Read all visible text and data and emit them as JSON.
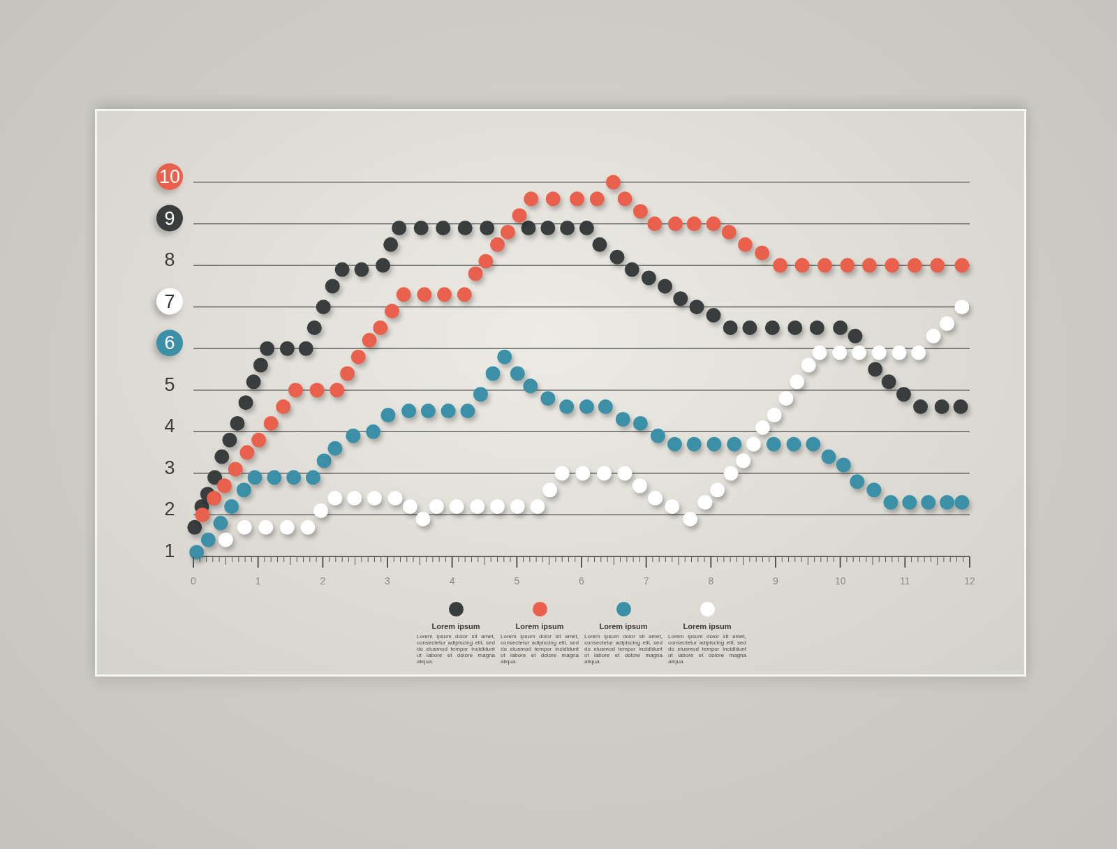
{
  "chart_data": {
    "type": "scatter",
    "marker": "circle",
    "grid": "y",
    "legend": "bottom",
    "xlim": [
      0,
      12
    ],
    "ylim": [
      1,
      10
    ],
    "yticks": [
      1,
      2,
      3,
      4,
      5,
      6,
      7,
      8,
      9,
      10
    ],
    "xticks": [
      0,
      {
        "value": 0.1,
        "label": null
      },
      {
        "value": 0.2,
        "label": null
      },
      {
        "value": 0.3,
        "label": null
      },
      {
        "value": 0.4,
        "label": null
      },
      {
        "value": 0.5,
        "label": null
      },
      {
        "value": 0.6,
        "label": null
      },
      {
        "value": 0.7,
        "label": null
      },
      {
        "value": 0.8,
        "label": null
      },
      {
        "value": 0.9,
        "label": null
      },
      1,
      {
        "value": 1.1,
        "label": null
      },
      {
        "value": 1.2,
        "label": null
      },
      {
        "value": 1.3,
        "label": null
      },
      {
        "value": 1.4,
        "label": null
      },
      {
        "value": 1.5,
        "label": null
      },
      {
        "value": 1.6,
        "label": null
      },
      {
        "value": 1.7,
        "label": null
      },
      {
        "value": 1.8,
        "label": null
      },
      {
        "value": 1.9,
        "label": null
      },
      2,
      {
        "value": 2.1,
        "label": null
      },
      {
        "value": 2.2,
        "label": null
      },
      {
        "value": 2.3,
        "label": null
      },
      {
        "value": 2.4,
        "label": null
      },
      {
        "value": 2.5,
        "label": null
      },
      {
        "value": 2.6,
        "label": null
      },
      {
        "value": 2.7,
        "label": null
      },
      {
        "value": 2.8,
        "label": null
      },
      {
        "value": 2.9,
        "label": null
      },
      3,
      {
        "value": 3.1,
        "label": null
      },
      {
        "value": 3.2,
        "label": null
      },
      {
        "value": 3.3,
        "label": null
      },
      {
        "value": 3.4,
        "label": null
      },
      {
        "value": 3.5,
        "label": null
      },
      {
        "value": 3.6,
        "label": null
      },
      {
        "value": 3.7,
        "label": null
      },
      {
        "value": 3.8,
        "label": null
      },
      {
        "value": 3.9,
        "label": null
      },
      4,
      {
        "value": 4.1,
        "label": null
      },
      {
        "value": 4.2,
        "label": null
      },
      {
        "value": 4.3,
        "label": null
      },
      {
        "value": 4.4,
        "label": null
      },
      {
        "value": 4.5,
        "label": null
      },
      {
        "value": 4.6,
        "label": null
      },
      {
        "value": 4.7,
        "label": null
      },
      {
        "value": 4.8,
        "label": null
      },
      {
        "value": 4.9,
        "label": null
      },
      5,
      {
        "value": 5.1,
        "label": null
      },
      {
        "value": 5.2,
        "label": null
      },
      {
        "value": 5.3,
        "label": null
      },
      {
        "value": 5.4,
        "label": null
      },
      {
        "value": 5.5,
        "label": null
      },
      {
        "value": 5.6,
        "label": null
      },
      {
        "value": 5.7,
        "label": null
      },
      {
        "value": 5.8,
        "label": null
      },
      {
        "value": 5.9,
        "label": null
      },
      6,
      {
        "value": 6.1,
        "label": null
      },
      {
        "value": 6.2,
        "label": null
      },
      {
        "value": 6.3,
        "label": null
      },
      {
        "value": 6.4,
        "label": null
      },
      {
        "value": 6.5,
        "label": null
      },
      {
        "value": 6.6,
        "label": null
      },
      {
        "value": 6.7,
        "label": null
      },
      {
        "value": 6.8,
        "label": null
      },
      {
        "value": 6.9,
        "label": null
      },
      7,
      {
        "value": 7.1,
        "label": null
      },
      {
        "value": 7.2,
        "label": null
      },
      {
        "value": 7.3,
        "label": null
      },
      {
        "value": 7.4,
        "label": null
      },
      {
        "value": 7.5,
        "label": null
      },
      {
        "value": 7.6,
        "label": null
      },
      {
        "value": 7.7,
        "label": null
      },
      {
        "value": 7.8,
        "label": null
      },
      {
        "value": 7.9,
        "label": null
      },
      8,
      {
        "value": 8.1,
        "label": null
      },
      {
        "value": 8.2,
        "label": null
      },
      {
        "value": 8.3,
        "label": null
      },
      {
        "value": 8.4,
        "label": null
      },
      {
        "value": 8.5,
        "label": null
      },
      {
        "value": 8.6,
        "label": null
      },
      {
        "value": 8.7,
        "label": null
      },
      {
        "value": 8.8,
        "label": null
      },
      {
        "value": 8.9,
        "label": null
      },
      9,
      {
        "value": 9.1,
        "label": null
      },
      {
        "value": 9.2,
        "label": null
      },
      {
        "value": 9.3,
        "label": null
      },
      {
        "value": 9.4,
        "label": null
      },
      {
        "value": 9.5,
        "label": null
      },
      {
        "value": 9.6,
        "label": null
      },
      {
        "value": 9.7,
        "label": null
      },
      {
        "value": 9.8,
        "label": null
      },
      {
        "value": 9.9,
        "label": null
      },
      10,
      {
        "value": 10.1,
        "label": null
      },
      {
        "value": 10.2,
        "label": null
      },
      {
        "value": 10.3,
        "label": null
      },
      {
        "value": 10.4,
        "label": null
      },
      {
        "value": 10.5,
        "label": null
      },
      {
        "value": 10.6,
        "label": null
      },
      {
        "value": 10.7,
        "label": null
      },
      {
        "value": 10.8,
        "label": null
      },
      {
        "value": 10.9,
        "label": null
      },
      11,
      {
        "value": 11.1,
        "label": null
      },
      {
        "value": 11.2,
        "label": null
      },
      {
        "value": 11.3,
        "label": null
      },
      {
        "value": 11.4,
        "label": null
      },
      {
        "value": 11.5,
        "label": null
      },
      {
        "value": 11.6,
        "label": null
      },
      {
        "value": 11.7,
        "label": null
      },
      {
        "value": 11.8,
        "label": null
      },
      {
        "value": 11.9,
        "label": null
      },
      12
    ],
    "series": [
      {
        "name": "Lorem ipsum",
        "color": "#3a3d3e",
        "x": [
          0.02,
          0.13,
          0.22,
          0.33,
          0.44,
          0.56,
          0.68,
          0.81,
          0.93,
          1.04,
          1.14,
          1.45,
          1.74,
          1.87,
          2.01,
          2.15,
          2.3,
          2.6,
          2.93,
          3.05,
          3.18,
          3.52,
          3.86,
          4.2,
          4.54,
          5.18,
          5.48,
          5.78,
          6.08,
          6.28,
          6.55,
          6.78,
          7.04,
          7.29,
          7.53,
          7.78,
          8.04,
          8.3,
          8.6,
          8.95,
          9.3,
          9.64,
          10.0,
          10.23,
          10.54,
          10.75,
          10.98,
          11.24,
          11.57,
          11.86
        ],
        "values": [
          1.7,
          2.2,
          2.5,
          2.9,
          3.4,
          3.8,
          4.2,
          4.7,
          5.2,
          5.6,
          6.0,
          6.0,
          6.0,
          6.5,
          7.0,
          7.5,
          7.9,
          7.9,
          8.0,
          8.5,
          8.9,
          8.9,
          8.9,
          8.9,
          8.9,
          8.9,
          8.9,
          8.9,
          8.9,
          8.5,
          8.2,
          7.9,
          7.7,
          7.5,
          7.2,
          7.0,
          6.8,
          6.5,
          6.5,
          6.5,
          6.5,
          6.5,
          6.5,
          6.3,
          5.5,
          5.2,
          4.9,
          4.6,
          4.6,
          4.6
        ]
      },
      {
        "name": "Lorem ipsum",
        "color": "#e9604c",
        "x": [
          0.14,
          0.32,
          0.48,
          0.65,
          0.83,
          1.01,
          1.2,
          1.39,
          1.58,
          1.91,
          2.22,
          2.38,
          2.55,
          2.72,
          2.89,
          3.07,
          3.25,
          3.57,
          3.88,
          4.19,
          4.36,
          4.52,
          4.7,
          4.86,
          5.04,
          5.22,
          5.56,
          5.93,
          6.24,
          6.49,
          6.67,
          6.91,
          7.13,
          7.45,
          7.74,
          8.04,
          8.28,
          8.53,
          8.79,
          9.07,
          9.41,
          9.76,
          10.11,
          10.45,
          10.8,
          11.15,
          11.5,
          11.88
        ],
        "values": [
          2.0,
          2.4,
          2.7,
          3.1,
          3.5,
          3.8,
          4.2,
          4.6,
          5.0,
          5.0,
          5.0,
          5.4,
          5.8,
          6.2,
          6.5,
          6.9,
          7.3,
          7.3,
          7.3,
          7.3,
          7.8,
          8.1,
          8.5,
          8.8,
          9.2,
          9.6,
          9.6,
          9.6,
          9.6,
          10.0,
          9.6,
          9.3,
          9.0,
          9.0,
          9.0,
          9.0,
          8.8,
          8.5,
          8.3,
          8.0,
          8.0,
          8.0,
          8.0,
          8.0,
          8.0,
          8.0,
          8.0,
          8.0
        ]
      },
      {
        "name": "Lorem ipsum",
        "color": "#3b8fa6",
        "x": [
          0.05,
          0.23,
          0.42,
          0.59,
          0.78,
          0.95,
          1.25,
          1.55,
          1.85,
          2.02,
          2.19,
          2.47,
          2.78,
          3.01,
          3.33,
          3.63,
          3.94,
          4.24,
          4.44,
          4.63,
          4.81,
          5.01,
          5.21,
          5.48,
          5.77,
          6.08,
          6.37,
          6.64,
          6.91,
          7.18,
          7.44,
          7.74,
          8.05,
          8.36,
          8.97,
          9.28,
          9.58,
          9.82,
          10.05,
          10.26,
          10.52,
          10.78,
          11.07,
          11.36,
          11.65,
          11.88
        ],
        "values": [
          1.1,
          1.4,
          1.8,
          2.2,
          2.6,
          2.9,
          2.9,
          2.9,
          2.9,
          3.3,
          3.6,
          3.9,
          4.0,
          4.4,
          4.5,
          4.5,
          4.5,
          4.5,
          4.9,
          5.4,
          5.8,
          5.4,
          5.1,
          4.8,
          4.6,
          4.6,
          4.6,
          4.3,
          4.2,
          3.9,
          3.7,
          3.7,
          3.7,
          3.7,
          3.7,
          3.7,
          3.7,
          3.4,
          3.2,
          2.8,
          2.6,
          2.3,
          2.3,
          2.3,
          2.3,
          2.3
        ]
      },
      {
        "name": "Lorem ipsum",
        "color": "#ffffff",
        "x": [
          0.5,
          0.79,
          1.12,
          1.45,
          1.77,
          1.97,
          2.19,
          2.49,
          2.8,
          3.12,
          3.35,
          3.55,
          3.76,
          4.07,
          4.39,
          4.7,
          5.01,
          5.32,
          5.51,
          5.7,
          6.02,
          6.35,
          6.67,
          6.9,
          7.14,
          7.4,
          7.68,
          7.91,
          8.1,
          8.31,
          8.5,
          8.66,
          8.8,
          8.98,
          9.16,
          9.33,
          9.51,
          9.68,
          9.99,
          10.29,
          10.6,
          10.91,
          11.21,
          11.44,
          11.65,
          11.88
        ],
        "values": [
          1.4,
          1.7,
          1.7,
          1.7,
          1.7,
          2.1,
          2.4,
          2.4,
          2.4,
          2.4,
          2.2,
          1.9,
          2.2,
          2.2,
          2.2,
          2.2,
          2.2,
          2.2,
          2.6,
          3.0,
          3.0,
          3.0,
          3.0,
          2.7,
          2.4,
          2.2,
          1.9,
          2.3,
          2.6,
          3.0,
          3.3,
          3.7,
          4.1,
          4.4,
          4.8,
          5.2,
          5.6,
          5.9,
          5.9,
          5.9,
          5.9,
          5.9,
          5.9,
          6.3,
          6.6,
          7.0
        ]
      }
    ],
    "annotations": [
      "Lorem ipsum dolor sit amet, consectetur adipiscing elit, sed do eiusmod tempor incididunt ut labore et dolore magna aliqua.",
      "Lorem ipsum dolor sit amet, consectetur adipiscing elit, sed do eiusmod tempor incididunt ut labore et dolore magna aliqua.",
      "Lorem ipsum dolor sit amet, consectetur adipiscing elit, sed do eiusmod tempor incididunt ut labore et dolore magna aliqua.",
      "Lorem ipsum dolor sit amet, consectetur adipiscing elit, sed do eiusmod tempor incididunt ut labore et dolore magna aliqua."
    ]
  }
}
